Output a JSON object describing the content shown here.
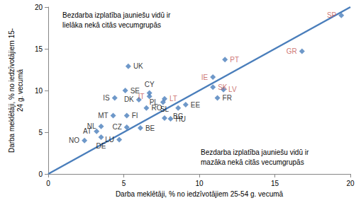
{
  "chart_data": {
    "type": "scatter",
    "color": "#4a7ebb",
    "marker": "diamond",
    "grid": false,
    "xlabel": "Darba meklētāji, % no iedzīvotājiem 25-54 g. vecumā",
    "ylabel": "Darba meklētāji, % no iedzīvotājiem 15-\n24 g. vecumā",
    "xlim": [
      0,
      20
    ],
    "ylim": [
      0,
      20
    ],
    "xticks": [
      0,
      5,
      10,
      15,
      20
    ],
    "yticks": [
      0,
      5,
      10,
      15,
      20
    ],
    "annotations": [
      "Bezdarba izplatība jauniešu vidū ir\nlielāka nekā citās vecumgrupās",
      "Bezdarba izplatība jauniešu vidū ir\nmazāka nekā citās vecumgrupās"
    ],
    "line": {
      "x": [
        0,
        20
      ],
      "y": [
        0,
        20
      ],
      "color": "#4a7ebb"
    },
    "points": [
      {
        "label": "SP",
        "x": 19.4,
        "y": 19.0,
        "label_color": "#c0504d"
      },
      {
        "label": "GR",
        "x": 16.8,
        "y": 14.7,
        "label_color": "#c0504d"
      },
      {
        "label": "PT",
        "x": 11.7,
        "y": 13.7,
        "label_color": "#c0504d"
      },
      {
        "label": "IE",
        "x": 10.9,
        "y": 11.6,
        "label_color": "#c0504d"
      },
      {
        "label": "SK",
        "x": 10.9,
        "y": 10.4,
        "label_color": "#c0504d"
      },
      {
        "label": "LV",
        "x": 11.6,
        "y": 10.1,
        "label_color": "#c0504d"
      },
      {
        "label": "FR",
        "x": 11.2,
        "y": 9.1,
        "label_color": "#000000"
      },
      {
        "label": "UK",
        "x": 5.3,
        "y": 12.9,
        "label_color": "#000000"
      },
      {
        "label": "SE",
        "x": 5.1,
        "y": 10.0,
        "label_color": "#000000"
      },
      {
        "label": "IS",
        "x": 4.4,
        "y": 9.1,
        "label_color": "#000000"
      },
      {
        "label": "DK",
        "x": 6.0,
        "y": 8.9,
        "label_color": "#000000"
      },
      {
        "label": "CY",
        "x": 6.7,
        "y": 9.7,
        "label_color": "#000000"
      },
      {
        "label": "IT",
        "x": 6.7,
        "y": 9.3,
        "label_color": "#c0504d"
      },
      {
        "label": "LT",
        "x": 7.7,
        "y": 9.0,
        "label_color": "#c0504d"
      },
      {
        "label": "PL",
        "x": 7.6,
        "y": 8.6,
        "label_color": "#000000"
      },
      {
        "label": "RO",
        "x": 6.5,
        "y": 7.9,
        "label_color": "#000000"
      },
      {
        "label": "EE",
        "x": 9.1,
        "y": 8.3,
        "label_color": "#000000"
      },
      {
        "label": "BG",
        "x": 8.6,
        "y": 7.9,
        "label_color": "#000000"
      },
      {
        "label": "HU",
        "x": 8.1,
        "y": 6.6,
        "label_color": "#000000"
      },
      {
        "label": "SL",
        "x": 7.7,
        "y": 6.7,
        "label_color": "#000000"
      },
      {
        "label": "MT",
        "x": 4.3,
        "y": 7.0,
        "label_color": "#000000"
      },
      {
        "label": "FI",
        "x": 5.2,
        "y": 7.0,
        "label_color": "#000000"
      },
      {
        "label": "NL",
        "x": 3.5,
        "y": 5.7,
        "label_color": "#000000"
      },
      {
        "label": "AT",
        "x": 3.2,
        "y": 5.1,
        "label_color": "#000000"
      },
      {
        "label": "NO",
        "x": 2.4,
        "y": 4.0,
        "label_color": "#000000"
      },
      {
        "label": "DE",
        "x": 3.5,
        "y": 4.4,
        "label_color": "#000000"
      },
      {
        "label": "LU",
        "x": 4.7,
        "y": 4.1,
        "label_color": "#000000"
      },
      {
        "label": "CZ",
        "x": 5.2,
        "y": 5.6,
        "label_color": "#000000"
      },
      {
        "label": "BE",
        "x": 6.1,
        "y": 5.5,
        "label_color": "#000000"
      }
    ]
  }
}
